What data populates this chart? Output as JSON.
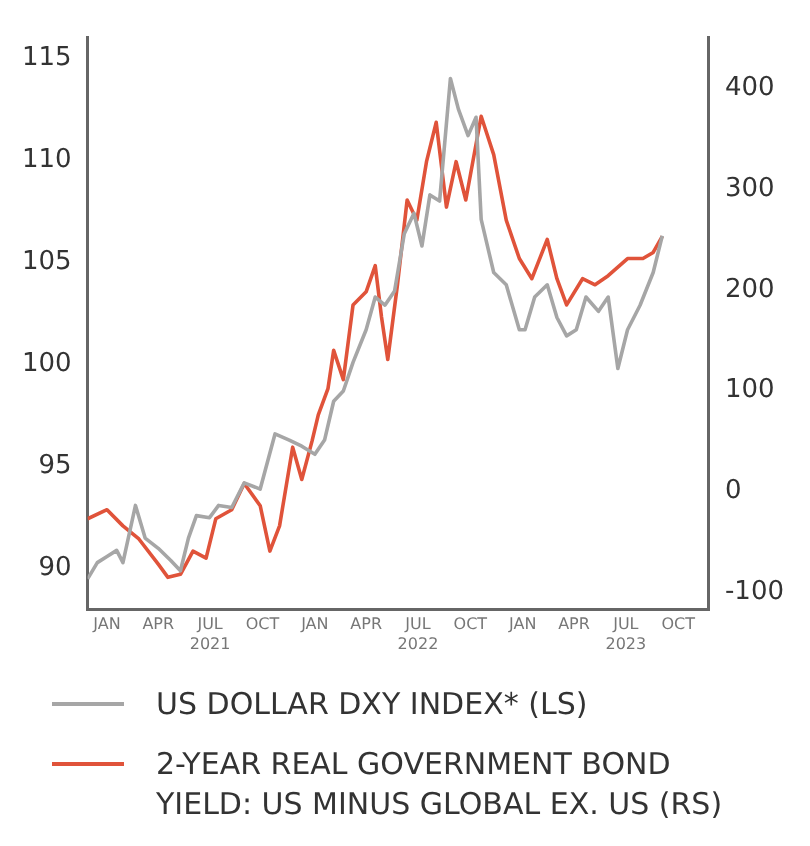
{
  "chart_data": {
    "type": "line",
    "legend": "bottom",
    "grid": false,
    "marker": "none",
    "line_style": "solid",
    "xlim": [
      "2020-11-28",
      "2023-11-24"
    ],
    "xticks": [
      {
        "value": "2021-01",
        "label": "JAN"
      },
      {
        "value": "2021-04",
        "label": "APR"
      },
      {
        "value": "2021-07",
        "label": "JUL\n2021"
      },
      {
        "value": "2021-10",
        "label": "OCT"
      },
      {
        "value": "2022-01",
        "label": "JAN"
      },
      {
        "value": "2022-04",
        "label": "APR"
      },
      {
        "value": "2022-07",
        "label": "JUL\n2022"
      },
      {
        "value": "2022-10",
        "label": "OCT"
      },
      {
        "value": "2023-01",
        "label": "JAN"
      },
      {
        "value": "2023-04",
        "label": "APR"
      },
      {
        "value": "2023-07",
        "label": "JUL\n2023"
      },
      {
        "value": "2023-10",
        "label": "OCT"
      }
    ],
    "ylim": [
      88,
      116
    ],
    "yticks": [
      90,
      95,
      100,
      105,
      110,
      115
    ],
    "y2lim": [
      -117,
      450
    ],
    "y2ticks": [
      -100,
      0,
      100,
      200,
      300,
      400
    ],
    "series": [
      {
        "name": "US DOLLAR DXY INDEX* (LS)",
        "color": "#a6a6a6",
        "axis": "y",
        "x": [
          "2020-11-28",
          "2020-12-15",
          "2021-01-01",
          "2021-01-18",
          "2021-01-29",
          "2021-02-20",
          "2021-03-09",
          "2021-04-01",
          "2021-04-23",
          "2021-05-10",
          "2021-05-24",
          "2021-06-07",
          "2021-06-30",
          "2021-07-16",
          "2021-08-08",
          "2021-08-30",
          "2021-09-27",
          "2021-10-23",
          "2021-11-17",
          "2021-12-09",
          "2022-01-01",
          "2022-01-18",
          "2022-02-03",
          "2022-02-20",
          "2022-03-09",
          "2022-04-01",
          "2022-04-17",
          "2022-05-04",
          "2022-05-21",
          "2022-06-07",
          "2022-06-24",
          "2022-07-08",
          "2022-07-22",
          "2022-08-08",
          "2022-08-27",
          "2022-09-10",
          "2022-09-27",
          "2022-10-11",
          "2022-10-20",
          "2022-11-11",
          "2022-12-03",
          "2022-12-26",
          "2023-01-05",
          "2023-01-22",
          "2023-02-13",
          "2023-03-02",
          "2023-03-19",
          "2023-04-05",
          "2023-04-22",
          "2023-05-14",
          "2023-05-31",
          "2023-06-17",
          "2023-07-04",
          "2023-07-26",
          "2023-08-18",
          "2023-09-03"
        ],
        "values": [
          89.5,
          90.3,
          90.6,
          90.9,
          90.3,
          93.1,
          91.5,
          91.0,
          90.4,
          89.9,
          91.5,
          92.6,
          92.5,
          93.1,
          93.0,
          94.2,
          93.9,
          96.6,
          96.3,
          96.0,
          95.6,
          96.3,
          98.2,
          98.7,
          100.1,
          101.7,
          103.3,
          102.9,
          103.6,
          106.4,
          107.4,
          105.8,
          108.3,
          108.0,
          114.0,
          112.5,
          111.2,
          112.1,
          107.1,
          104.5,
          103.9,
          101.7,
          101.7,
          103.3,
          103.9,
          102.3,
          101.4,
          101.7,
          103.3,
          102.6,
          103.3,
          99.8,
          101.7,
          102.9,
          104.5,
          106.3
        ]
      },
      {
        "name": "2-YEAR REAL GOVERNMENT BOND YIELD: US MINUS GLOBAL EX. US (RS)",
        "color": "#e0533a",
        "axis": "y2",
        "x": [
          "2020-11-28",
          "2021-01-01",
          "2021-01-29",
          "2021-02-26",
          "2021-04-01",
          "2021-04-18",
          "2021-05-10",
          "2021-06-01",
          "2021-06-24",
          "2021-07-11",
          "2021-08-08",
          "2021-08-30",
          "2021-09-27",
          "2021-10-14",
          "2021-10-31",
          "2021-11-23",
          "2021-12-09",
          "2021-12-27",
          "2022-01-07",
          "2022-01-24",
          "2022-02-03",
          "2022-02-20",
          "2022-03-09",
          "2022-04-01",
          "2022-04-17",
          "2022-04-28",
          "2022-05-09",
          "2022-05-26",
          "2022-06-12",
          "2022-06-29",
          "2022-07-16",
          "2022-08-02",
          "2022-08-20",
          "2022-09-06",
          "2022-09-23",
          "2022-10-20",
          "2022-11-11",
          "2022-12-03",
          "2022-12-26",
          "2023-01-17",
          "2023-02-13",
          "2023-03-02",
          "2023-03-19",
          "2023-04-16",
          "2023-05-08",
          "2023-05-31",
          "2023-07-04",
          "2023-07-31",
          "2023-08-18",
          "2023-09-03"
        ],
        "values": [
          -27,
          -18,
          -34,
          -47,
          -72,
          -85,
          -82,
          -59,
          -66,
          -27,
          -18,
          8,
          -14,
          -59,
          -34,
          44,
          12,
          50,
          76,
          102,
          140,
          111,
          185,
          198,
          224,
          173,
          131,
          205,
          289,
          269,
          327,
          366,
          282,
          327,
          289,
          372,
          334,
          269,
          231,
          211,
          250,
          211,
          185,
          211,
          205,
          214,
          231,
          231,
          237,
          253
        ]
      }
    ]
  }
}
